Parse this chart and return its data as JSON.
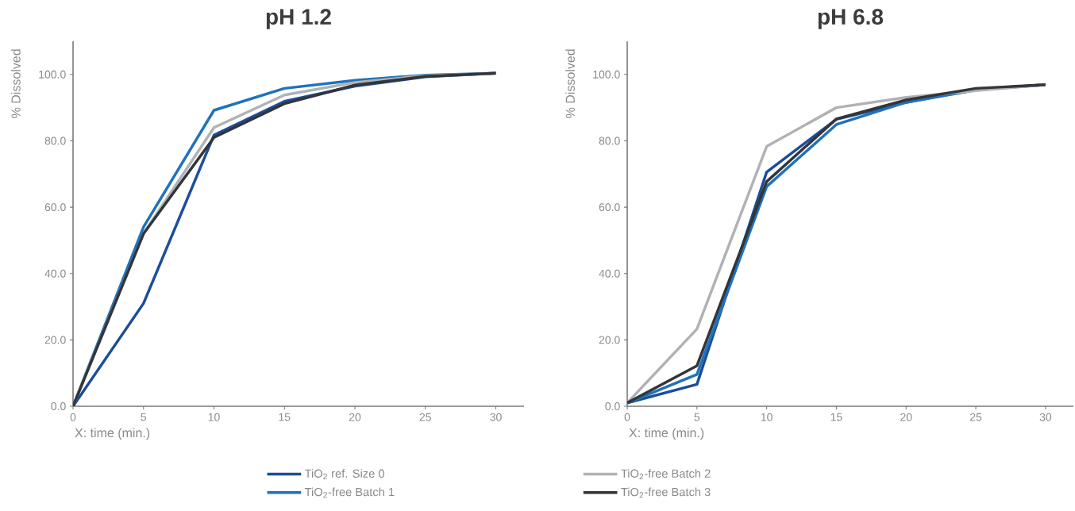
{
  "chart_data": [
    {
      "type": "line",
      "title": "pH 1.2",
      "xlabel": "X: time (min.)",
      "ylabel": "% Dissolved",
      "x": [
        0,
        5,
        10,
        15,
        20,
        25,
        30
      ],
      "xlim": [
        0,
        32
      ],
      "ylim": [
        0,
        110
      ],
      "xticks": [
        0,
        5,
        10,
        15,
        20,
        25,
        30
      ],
      "yticks": [
        {
          "value": 0,
          "label": "0.0"
        },
        {
          "value": 20,
          "label": "20.0"
        },
        {
          "value": 40,
          "label": "40.0"
        },
        {
          "value": 60,
          "label": "60.0"
        },
        {
          "value": 80,
          "label": "80.0"
        },
        {
          "value": 100,
          "label": "100.0"
        }
      ],
      "grid": false,
      "legend": "bottom",
      "line_style": "solid",
      "series": [
        {
          "name": "TiO$_{2}$ ref. Size 0",
          "color": "#1a4d9c",
          "values": [
            0,
            31,
            81.7,
            91.9,
            96.5,
            99.3,
            100.4
          ]
        },
        {
          "name": "TiO$_{2}$-free Batch 1",
          "color": "#1f72bb",
          "values": [
            0,
            54,
            89.2,
            95.8,
            98.2,
            99.8,
            100.4
          ]
        },
        {
          "name": "TiO$_{2}$-free Batch 2",
          "color": "#b0b2b5",
          "values": [
            0,
            52,
            84,
            93.8,
            97.6,
            99.6,
            100.3
          ]
        },
        {
          "name": "TiO$_{2}$-free Batch 3",
          "color": "#333538",
          "values": [
            0,
            52,
            81,
            91.2,
            96.8,
            99.4,
            100.4
          ]
        }
      ]
    },
    {
      "type": "line",
      "title": "pH 6.8",
      "xlabel": "X: time (min.)",
      "ylabel": "% Dissolved",
      "x": [
        0,
        5,
        10,
        15,
        20,
        25,
        30
      ],
      "xlim": [
        0,
        32
      ],
      "ylim": [
        0,
        110
      ],
      "xticks": [
        0,
        5,
        10,
        15,
        20,
        25,
        30
      ],
      "yticks": [
        {
          "value": 0,
          "label": "0.0"
        },
        {
          "value": 20,
          "label": "20.0"
        },
        {
          "value": 40,
          "label": "40.0"
        },
        {
          "value": 60,
          "label": "60.0"
        },
        {
          "value": 80,
          "label": "80.0"
        },
        {
          "value": 100,
          "label": "100.0"
        }
      ],
      "grid": false,
      "line_style": "solid",
      "series": [
        {
          "color": "#1a4d9c",
          "values": [
            1,
            6.6,
            70.6,
            86.5,
            91.6,
            95.5,
            96.9
          ]
        },
        {
          "color": "#1f72bb",
          "values": [
            1,
            9.6,
            66.2,
            84.9,
            91.6,
            95.3,
            96.9
          ]
        },
        {
          "color": "#b0b2b5",
          "values": [
            1,
            23.3,
            78.3,
            90,
            93.1,
            95.1,
            96.9
          ]
        },
        {
          "color": "#333538",
          "values": [
            1,
            12.2,
            67.7,
            86.6,
            92.3,
            95.8,
            96.9
          ]
        }
      ]
    }
  ]
}
